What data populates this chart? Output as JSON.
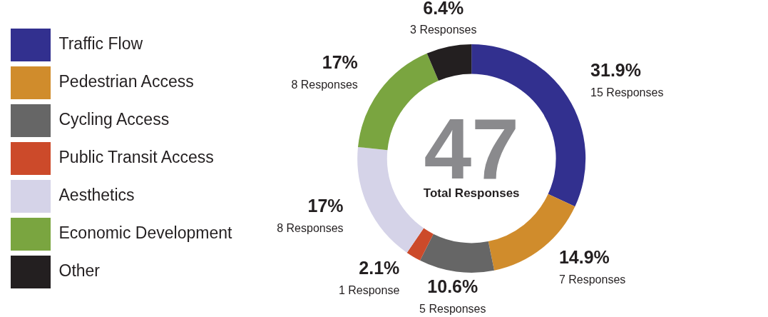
{
  "chart_data": {
    "type": "donut",
    "categories": [
      "Traffic Flow",
      "Pedestrian Access",
      "Cycling Access",
      "Public Transit Access",
      "Aesthetics",
      "Economic Development",
      "Other"
    ],
    "values": [
      15,
      7,
      5,
      1,
      8,
      8,
      3
    ],
    "colors": [
      "#32308f",
      "#d08c2c",
      "#666666",
      "#cc4a2a",
      "#d5d3e8",
      "#7aa540",
      "#231f20"
    ],
    "value_labels": [
      "31.9%\n15 Responses",
      "14.9%\n7 Responses",
      "10.6%\n5 Responses",
      "2.1%\n1 Response",
      "17%\n8 Responses",
      "17%\n8 Responses",
      "6.4%\n3 Responses"
    ],
    "annotations": [
      "47",
      "Total Responses"
    ],
    "legend": "left"
  }
}
